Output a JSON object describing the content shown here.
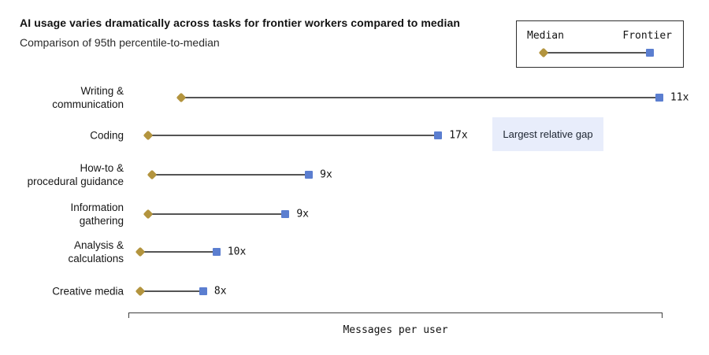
{
  "header": {
    "title": "AI usage varies dramatically across tasks for frontier workers compared to median",
    "subtitle": "Comparison of 95th percentile-to-median"
  },
  "legend": {
    "median_label": "Median",
    "frontier_label": "Frontier"
  },
  "annotation": {
    "text": "Largest relative gap"
  },
  "axis": {
    "label": "Messages per user"
  },
  "colors": {
    "median_marker": "#b3943e",
    "frontier_marker": "#5b7ed0",
    "connector": "#555555",
    "annotation_bg": "#e8edfb"
  },
  "chart_data": {
    "type": "dumbbell",
    "title": "AI usage varies dramatically across tasks for frontier workers compared to median",
    "subtitle": "Comparison of 95th percentile-to-median",
    "xlabel": "Messages per user",
    "x_axis_ticks": "none",
    "grid": "off",
    "legend_entries": [
      {
        "name": "Median",
        "marker": "gold-diamond"
      },
      {
        "name": "Frontier",
        "marker": "blue-square"
      }
    ],
    "legend_position": "top-right",
    "categories": [
      "Writing & communication",
      "Coding",
      "How-to & procedural guidance",
      "Information gathering",
      "Analysis & calculations",
      "Creative media"
    ],
    "rows": [
      {
        "label_lines": [
          "Writing &",
          "communication"
        ],
        "ratio_label": "11x",
        "median_pos_pct": 9.9,
        "frontier_pos_pct": 99.4
      },
      {
        "label_lines": [
          "Coding"
        ],
        "ratio_label": "17x",
        "median_pos_pct": 3.7,
        "frontier_pos_pct": 58.0,
        "annotation": "Largest relative gap"
      },
      {
        "label_lines": [
          "How-to &",
          "procedural guidance"
        ],
        "ratio_label": "9x",
        "median_pos_pct": 4.4,
        "frontier_pos_pct": 33.8
      },
      {
        "label_lines": [
          "Information",
          "gathering"
        ],
        "ratio_label": "9x",
        "median_pos_pct": 3.7,
        "frontier_pos_pct": 29.4
      },
      {
        "label_lines": [
          "Analysis &",
          "calculations"
        ],
        "ratio_label": "10x",
        "median_pos_pct": 2.2,
        "frontier_pos_pct": 16.5
      },
      {
        "label_lines": [
          "Creative media"
        ],
        "ratio_label": "8x",
        "median_pos_pct": 2.2,
        "frontier_pos_pct": 14.0
      }
    ]
  }
}
